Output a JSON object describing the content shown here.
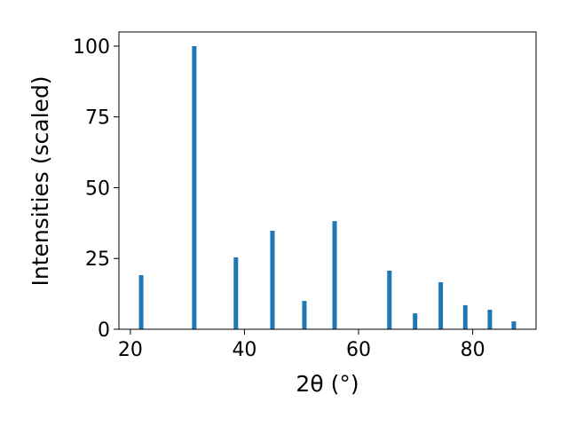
{
  "chart_data": {
    "type": "bar",
    "x": [
      21.9,
      31.2,
      38.5,
      44.9,
      50.5,
      55.8,
      65.4,
      69.9,
      74.4,
      78.7,
      83.0,
      87.2
    ],
    "values": [
      19.1,
      100,
      25.4,
      34.8,
      10,
      38.2,
      20.7,
      5.6,
      16.6,
      8.5,
      6.9,
      2.8
    ],
    "color": "#1f77b4",
    "xlabel": "2θ (°)",
    "ylabel": "Intensities (scaled)",
    "xlim": [
      18,
      91.1
    ],
    "xticks": [
      20,
      40,
      60,
      80
    ],
    "ylim": [
      0,
      105
    ],
    "yticks": [
      0,
      25,
      50,
      75,
      100
    ],
    "grid": false
  }
}
